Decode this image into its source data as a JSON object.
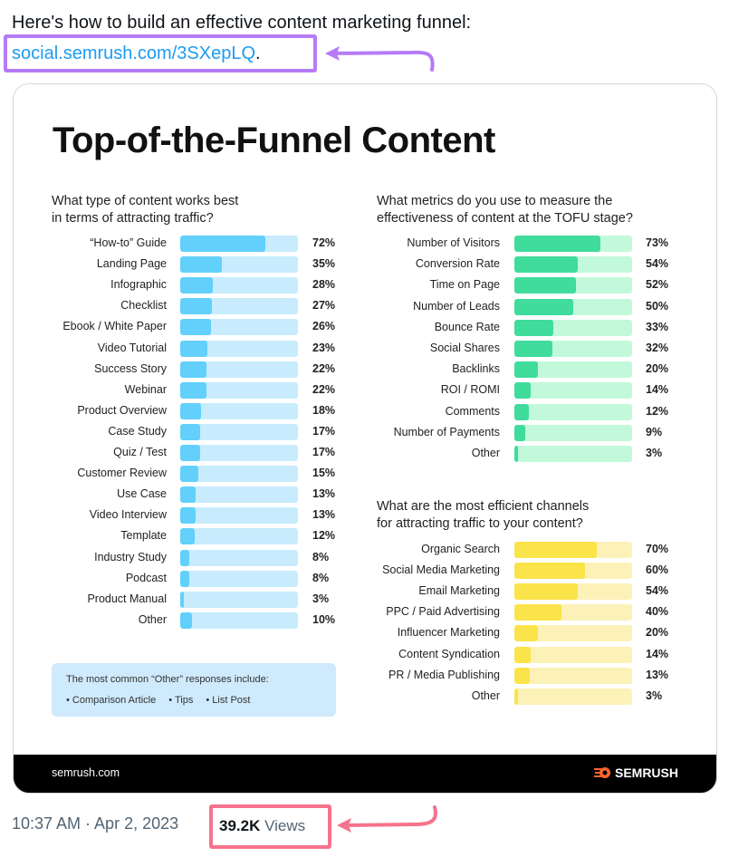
{
  "tweet": {
    "text": "Here's how to build an effective content marketing funnel:",
    "link": "social.semrush.com/3SXepLQ",
    "link_suffix": ".",
    "timestamp": "10:37 AM · Apr 2, 2023",
    "views_count": "39.2K",
    "views_label": "Views",
    "annotation_colors": {
      "link_box": "#b57bf7",
      "views_box": "#f7728c"
    }
  },
  "infographic": {
    "title": "Top-of-the-Funnel Content",
    "footer_site": "semrush.com",
    "footer_logo": "SEMRUSH",
    "note": {
      "heading": "The most common “Other” responses include:",
      "items": [
        "Comparison Article",
        "Tips",
        "List Post"
      ]
    }
  },
  "chart_data": [
    {
      "type": "bar",
      "orientation": "horizontal",
      "title": "What type of content works best in terms of attracting traffic?",
      "title_lines": [
        "What type of content works best",
        "in terms of attracting traffic?"
      ],
      "colors": {
        "fill": "#62d0fb",
        "track": "#c8ecfd"
      },
      "categories": [
        "“How-to” Guide",
        "Landing Page",
        "Infographic",
        "Checklist",
        "Ebook / White Paper",
        "Video Tutorial",
        "Success Story",
        "Webinar",
        "Product Overview",
        "Case Study",
        "Quiz / Test",
        "Customer Review",
        "Use Case",
        "Video Interview",
        "Template",
        "Industry Study",
        "Podcast",
        "Product Manual",
        "Other"
      ],
      "values": [
        72,
        35,
        28,
        27,
        26,
        23,
        22,
        22,
        18,
        17,
        17,
        15,
        13,
        13,
        12,
        8,
        8,
        3,
        10
      ],
      "labels": [
        "72%",
        "35%",
        "28%",
        "27%",
        "26%",
        "23%",
        "22%",
        "22%",
        "18%",
        "17%",
        "17%",
        "15%",
        "13%",
        "13%",
        "12%",
        "8%",
        "8%",
        "3%",
        "10%"
      ],
      "xlim": [
        0,
        100
      ]
    },
    {
      "type": "bar",
      "orientation": "horizontal",
      "title": "What metrics do you use to measure the effectiveness of content at the TOFU stage?",
      "title_lines": [
        "What metrics do you use to measure the",
        "effectiveness of content at the TOFU stage?"
      ],
      "colors": {
        "fill": "#3fdc9c",
        "track": "#c2f9da"
      },
      "categories": [
        "Number of Visitors",
        "Conversion Rate",
        "Time on Page",
        "Number of Leads",
        "Bounce Rate",
        "Social Shares",
        "Backlinks",
        "ROI / ROMI",
        "Comments",
        "Number of Payments",
        "Other"
      ],
      "values": [
        73,
        54,
        52,
        50,
        33,
        32,
        20,
        14,
        12,
        9,
        3
      ],
      "labels": [
        "73%",
        "54%",
        "52%",
        "50%",
        "33%",
        "32%",
        "20%",
        "14%",
        "12%",
        "9%",
        "3%"
      ],
      "xlim": [
        0,
        100
      ]
    },
    {
      "type": "bar",
      "orientation": "horizontal",
      "title": "What are the most efficient channels for attracting traffic to your content?",
      "title_lines": [
        "What are the most efficient channels",
        "for attracting traffic to your content?"
      ],
      "colors": {
        "fill": "#fbe34a",
        "track": "#fcf2b8"
      },
      "categories": [
        "Organic Search",
        "Social Media Marketing",
        "Email Marketing",
        "PPC / Paid Advertising",
        "Influencer Marketing",
        "Content Syndication",
        "PR / Media Publishing",
        "Other"
      ],
      "values": [
        70,
        60,
        54,
        40,
        20,
        14,
        13,
        3
      ],
      "labels": [
        "70%",
        "60%",
        "54%",
        "40%",
        "20%",
        "14%",
        "13%",
        "3%"
      ],
      "xlim": [
        0,
        100
      ]
    }
  ]
}
